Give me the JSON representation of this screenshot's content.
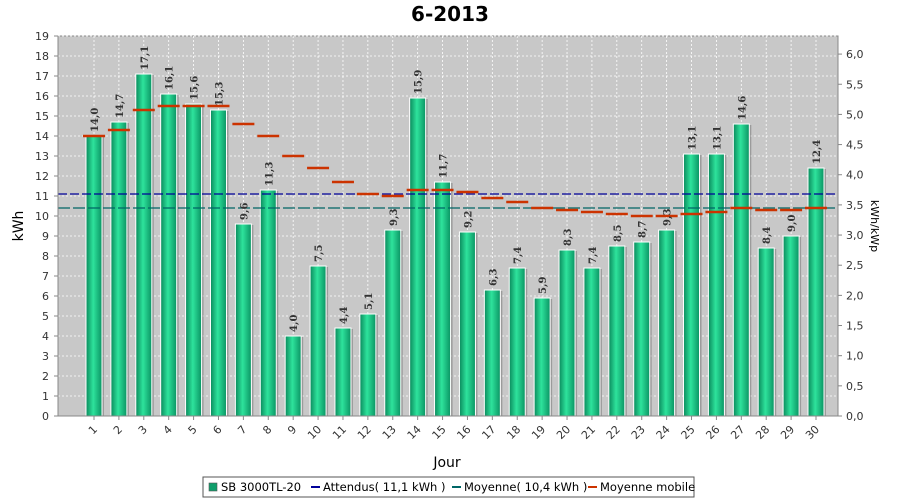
{
  "chart_data": {
    "type": "bar",
    "title": "6-2013",
    "xlabel": "Jour",
    "ylabel": "kWh",
    "y2label": "kWh/kWp",
    "ylim": [
      0,
      19
    ],
    "y2lim": [
      0,
      6.3
    ],
    "yticks": [
      "0",
      "1",
      "2",
      "3",
      "4",
      "5",
      "6",
      "7",
      "8",
      "9",
      "10",
      "11",
      "12",
      "13",
      "14",
      "15",
      "16",
      "17",
      "18",
      "19"
    ],
    "y2ticks": [
      "0,0",
      "0,5",
      "1,0",
      "1,5",
      "2,0",
      "2,5",
      "3,0",
      "3,5",
      "4,0",
      "4,5",
      "5,0",
      "5,5",
      "6,0"
    ],
    "categories": [
      "1",
      "2",
      "3",
      "4",
      "5",
      "6",
      "7",
      "8",
      "9",
      "10",
      "11",
      "12",
      "13",
      "14",
      "15",
      "16",
      "17",
      "18",
      "19",
      "20",
      "21",
      "22",
      "23",
      "24",
      "25",
      "26",
      "27",
      "28",
      "29",
      "30"
    ],
    "series": [
      {
        "name": "SB 3000TL-20",
        "values": [
          14.0,
          14.7,
          17.1,
          16.1,
          15.6,
          15.3,
          9.6,
          11.3,
          4.0,
          7.5,
          4.4,
          5.1,
          9.3,
          15.9,
          11.7,
          9.2,
          6.3,
          7.4,
          5.9,
          8.3,
          7.4,
          8.5,
          8.7,
          9.3,
          13.1,
          13.1,
          14.6,
          8.4,
          9.0,
          12.4
        ],
        "labels": [
          "14,0",
          "14,7",
          "17,1",
          "16,1",
          "15,6",
          "15,3",
          "9,6",
          "11,3",
          "4,0",
          "7,5",
          "4,4",
          "5,1",
          "9,3",
          "15,9",
          "11,7",
          "9,2",
          "6,3",
          "7,4",
          "5,9",
          "8,3",
          "7,4",
          "8,5",
          "8,7",
          "9,3",
          "13,1",
          "13,1",
          "14,6",
          "8,4",
          "9,0",
          "12,4"
        ],
        "color": "#1ec98a"
      },
      {
        "name": "Moyenne mobile",
        "values": [
          14.0,
          14.3,
          15.3,
          15.5,
          15.5,
          15.5,
          14.6,
          14.0,
          13.0,
          12.4,
          11.7,
          11.1,
          11.0,
          11.3,
          11.3,
          11.2,
          10.9,
          10.7,
          10.4,
          10.3,
          10.2,
          10.1,
          10.0,
          10.0,
          10.1,
          10.2,
          10.4,
          10.3,
          10.3,
          10.4
        ],
        "color": "#cc3300"
      }
    ],
    "reference_lines": [
      {
        "name": "Attendus",
        "value": 11.1,
        "color": "#000099"
      },
      {
        "name": "Moyenne",
        "value": 10.4,
        "color": "#006666"
      }
    ],
    "legend": {
      "placement": "bottom",
      "items": [
        {
          "label": "SB 3000TL-20",
          "kind": "square",
          "color": "#0f9e6b"
        },
        {
          "label": "Attendus( 11,1 kWh )",
          "kind": "line",
          "color": "#000099"
        },
        {
          "label": "Moyenne( 10,4 kWh )",
          "kind": "line",
          "color": "#006666"
        },
        {
          "label": "Moyenne mobile",
          "kind": "line",
          "color": "#cc3300"
        }
      ]
    },
    "grid": true,
    "plot_background": "#c8c8c8"
  }
}
